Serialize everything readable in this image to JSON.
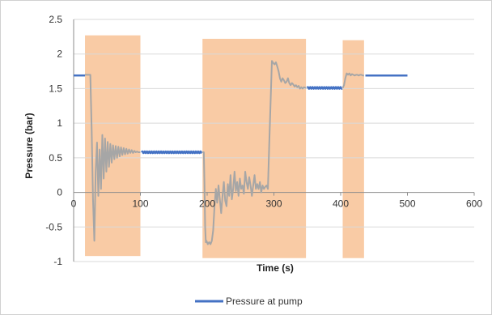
{
  "chart_data": {
    "type": "line",
    "title": "",
    "xlabel": "Time (s)",
    "ylabel": "Pressure (bar)",
    "xlim": [
      0,
      600
    ],
    "ylim": [
      -1,
      2.5
    ],
    "xticks": [
      0,
      100,
      200,
      300,
      400,
      500,
      600
    ],
    "yticks": [
      -1,
      -0.5,
      0,
      0.5,
      1,
      1.5,
      2,
      2.5
    ],
    "grid": "horizontal",
    "legend_position": "bottom",
    "shaded_regions": [
      {
        "x": [
          17,
          100
        ],
        "y": [
          -0.92,
          2.27
        ],
        "color": "#f9cba5"
      },
      {
        "x": [
          193,
          348
        ],
        "y": [
          -0.95,
          2.22
        ],
        "color": "#f9cba5"
      },
      {
        "x": [
          403,
          435
        ],
        "y": [
          -0.95,
          2.2
        ],
        "color": "#f9cba5"
      }
    ],
    "series": [
      {
        "name": "Pressure at pump",
        "color": "#4472c4",
        "segments": [
          {
            "x": [
              0,
              17
            ],
            "y": [
              1.69,
              1.69
            ]
          },
          {
            "x": [
              102,
              192
            ],
            "y": [
              0.58,
              0.58
            ],
            "wavy": true
          },
          {
            "x": [
              350,
              402
            ],
            "y": [
              1.51,
              1.51
            ],
            "wavy": true
          },
          {
            "x": [
              437,
              500
            ],
            "y": [
              1.69,
              1.69
            ]
          }
        ]
      },
      {
        "name": "",
        "color": "#a6a6a6",
        "segments": [
          {
            "x": [
              17,
              25,
              27,
              29,
              31,
              33,
              35,
              37,
              39,
              41,
              43,
              45,
              47,
              49,
              51,
              53,
              55,
              57,
              59,
              61,
              63,
              65,
              67,
              69,
              71,
              73,
              75,
              77,
              79,
              81,
              83,
              85,
              87,
              89,
              91,
              93,
              95,
              97,
              100
            ],
            "y": [
              1.7,
              1.7,
              0.9,
              -0.1,
              -0.7,
              0.3,
              0.72,
              -0.05,
              0.62,
              0.05,
              0.83,
              0.2,
              0.78,
              0.3,
              0.73,
              0.37,
              0.7,
              0.43,
              0.68,
              0.48,
              0.67,
              0.5,
              0.66,
              0.52,
              0.65,
              0.54,
              0.64,
              0.55,
              0.63,
              0.56,
              0.62,
              0.57,
              0.61,
              0.57,
              0.6,
              0.58,
              0.59,
              0.58,
              0.58
            ]
          },
          {
            "x": [
              193,
              195,
              196,
              197,
              198,
              199,
              201,
              203,
              205,
              207,
              209,
              211,
              213,
              215,
              217,
              219,
              221,
              223,
              225,
              227,
              229,
              231,
              233,
              235,
              237,
              239,
              241,
              243,
              245,
              247,
              249,
              251,
              253,
              255,
              257,
              259,
              261,
              263,
              265,
              267,
              269,
              271,
              273,
              275,
              277,
              279,
              281,
              283,
              285,
              287,
              289,
              291,
              293,
              295,
              297,
              299,
              301,
              303,
              305,
              307,
              309,
              311,
              313,
              315,
              317,
              319,
              321,
              323,
              325,
              327,
              329,
              331,
              333,
              335,
              337,
              339,
              341,
              343,
              345,
              348
            ],
            "y": [
              0.58,
              0.58,
              0.1,
              -0.5,
              -0.72,
              -0.7,
              -0.75,
              -0.72,
              -0.75,
              -0.7,
              -0.55,
              -0.2,
              0.05,
              -0.15,
              0.1,
              -0.1,
              -0.3,
              -0.05,
              0.15,
              -0.12,
              -0.2,
              0.12,
              -0.05,
              0.25,
              -0.1,
              0.05,
              0.3,
              0.02,
              0.15,
              -0.05,
              0.2,
              0.05,
              0.1,
              -0.02,
              0.3,
              0.15,
              0.05,
              0.22,
              0.1,
              -0.05,
              0.1,
              0.25,
              0.05,
              0.12,
              0.05,
              0.15,
              0.0,
              0.1,
              0.05,
              0.08,
              0.1,
              0.05,
              0.7,
              1.3,
              1.9,
              1.87,
              1.85,
              1.88,
              1.82,
              1.75,
              1.65,
              1.6,
              1.65,
              1.62,
              1.58,
              1.6,
              1.65,
              1.58,
              1.55,
              1.58,
              1.56,
              1.53,
              1.55,
              1.52,
              1.54,
              1.5,
              1.52,
              1.5,
              1.52,
              1.51
            ]
          },
          {
            "x": [
              403,
              405,
              407,
              409,
              411,
              413,
              415,
              417,
              419,
              421,
              423,
              425,
              427,
              429,
              431,
              433,
              435
            ],
            "y": [
              1.51,
              1.55,
              1.65,
              1.72,
              1.7,
              1.72,
              1.69,
              1.71,
              1.7,
              1.69,
              1.7,
              1.7,
              1.69,
              1.7,
              1.7,
              1.69,
              1.69
            ]
          }
        ]
      }
    ]
  }
}
